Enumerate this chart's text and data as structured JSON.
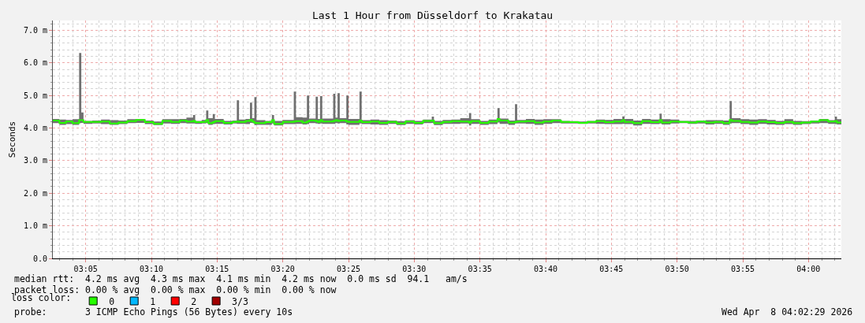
{
  "chart_data": {
    "type": "step",
    "title": "Last 1 Hour from Düsseldorf to Krakatau",
    "ylabel": "Seconds",
    "legend_title": "loss color:",
    "x": [
      "2026-04-08T03:02:30",
      "2026-04-08T03:03:00",
      "2026-04-08T03:03:30",
      "2026-04-08T03:04:00",
      "2026-04-08T03:04:30",
      "2026-04-08T03:04:40",
      "2026-04-08T03:04:50",
      "2026-04-08T03:05:30",
      "2026-04-08T03:06:10",
      "2026-04-08T03:06:50",
      "2026-04-08T03:07:30",
      "2026-04-08T03:08:10",
      "2026-04-08T03:08:50",
      "2026-04-08T03:09:30",
      "2026-04-08T03:10:10",
      "2026-04-08T03:10:50",
      "2026-04-08T03:11:30",
      "2026-04-08T03:12:10",
      "2026-04-08T03:12:40",
      "2026-04-08T03:13:10",
      "2026-04-08T03:13:20",
      "2026-04-08T03:13:50",
      "2026-04-08T03:14:10",
      "2026-04-08T03:14:20",
      "2026-04-08T03:14:40",
      "2026-04-08T03:14:50",
      "2026-04-08T03:15:30",
      "2026-04-08T03:16:10",
      "2026-04-08T03:16:30",
      "2026-04-08T03:16:40",
      "2026-04-08T03:17:10",
      "2026-04-08T03:17:30",
      "2026-04-08T03:17:40",
      "2026-04-08T03:17:50",
      "2026-04-08T03:18:00",
      "2026-04-08T03:18:40",
      "2026-04-08T03:19:10",
      "2026-04-08T03:19:20",
      "2026-04-08T03:20:00",
      "2026-04-08T03:20:50",
      "2026-04-08T03:21:00",
      "2026-04-08T03:21:30",
      "2026-04-08T03:21:50",
      "2026-04-08T03:22:00",
      "2026-04-08T03:22:30",
      "2026-04-08T03:22:40",
      "2026-04-08T03:22:50",
      "2026-04-08T03:23:00",
      "2026-04-08T03:23:50",
      "2026-04-08T03:24:00",
      "2026-04-08T03:24:10",
      "2026-04-08T03:24:20",
      "2026-04-08T03:24:50",
      "2026-04-08T03:25:00",
      "2026-04-08T03:25:50",
      "2026-04-08T03:26:00",
      "2026-04-08T03:26:40",
      "2026-04-08T03:27:20",
      "2026-04-08T03:28:00",
      "2026-04-08T03:28:40",
      "2026-04-08T03:29:20",
      "2026-04-08T03:30:00",
      "2026-04-08T03:30:40",
      "2026-04-08T03:31:20",
      "2026-04-08T03:31:30",
      "2026-04-08T03:32:10",
      "2026-04-08T03:32:50",
      "2026-04-08T03:33:30",
      "2026-04-08T03:34:10",
      "2026-04-08T03:34:20",
      "2026-04-08T03:35:00",
      "2026-04-08T03:35:40",
      "2026-04-08T03:36:20",
      "2026-04-08T03:36:30",
      "2026-04-08T03:37:10",
      "2026-04-08T03:37:40",
      "2026-04-08T03:37:50",
      "2026-04-08T03:38:30",
      "2026-04-08T03:39:10",
      "2026-04-08T03:39:50",
      "2026-04-08T03:40:30",
      "2026-04-08T03:41:10",
      "2026-04-08T03:41:50",
      "2026-04-08T03:42:30",
      "2026-04-08T03:43:10",
      "2026-04-08T03:43:50",
      "2026-04-08T03:44:30",
      "2026-04-08T03:45:10",
      "2026-04-08T03:45:50",
      "2026-04-08T03:46:00",
      "2026-04-08T03:46:40",
      "2026-04-08T03:47:20",
      "2026-04-08T03:48:00",
      "2026-04-08T03:48:40",
      "2026-04-08T03:48:50",
      "2026-04-08T03:49:30",
      "2026-04-08T03:50:10",
      "2026-04-08T03:50:50",
      "2026-04-08T03:51:30",
      "2026-04-08T03:52:10",
      "2026-04-08T03:52:50",
      "2026-04-08T03:53:30",
      "2026-04-08T03:54:00",
      "2026-04-08T03:54:10",
      "2026-04-08T03:54:50",
      "2026-04-08T03:55:30",
      "2026-04-08T03:56:10",
      "2026-04-08T03:56:50",
      "2026-04-08T03:57:30",
      "2026-04-08T03:58:10",
      "2026-04-08T03:58:50",
      "2026-04-08T03:59:30",
      "2026-04-08T04:00:10",
      "2026-04-08T04:00:50",
      "2026-04-08T04:01:30",
      "2026-04-08T04:02:00",
      "2026-04-08T04:02:10",
      "2026-04-08T04:02:30"
    ],
    "series": [
      {
        "name": "0",
        "color": "#26ff00",
        "values": [
          4.23,
          4.16,
          4.2,
          4.15,
          4.24,
          4.24,
          4.19,
          4.19,
          4.2,
          4.14,
          4.17,
          4.21,
          4.25,
          4.18,
          4.13,
          4.22,
          4.19,
          4.23,
          4.2,
          4.22,
          4.18,
          4.19,
          4.24,
          4.15,
          4.18,
          4.21,
          4.16,
          4.19,
          4.2,
          4.19,
          4.22,
          4.25,
          4.2,
          4.16,
          4.15,
          4.18,
          4.24,
          4.13,
          4.19,
          4.2,
          4.21,
          4.17,
          4.2,
          4.23,
          4.21,
          4.19,
          4.24,
          4.2,
          4.22,
          4.24,
          4.22,
          4.23,
          4.2,
          4.19,
          4.23,
          4.18,
          4.2,
          4.16,
          4.19,
          4.14,
          4.2,
          4.16,
          4.22,
          4.23,
          4.15,
          4.19,
          4.21,
          4.2,
          4.17,
          4.21,
          4.16,
          4.2,
          4.28,
          4.23,
          4.17,
          4.19,
          4.2,
          4.21,
          4.17,
          4.2,
          4.23,
          4.19,
          4.18,
          4.16,
          4.19,
          4.21,
          4.18,
          4.2,
          4.24,
          4.19,
          4.15,
          4.21,
          4.18,
          4.24,
          4.17,
          4.2,
          4.19,
          4.17,
          4.2,
          4.17,
          4.19,
          4.15,
          4.25,
          4.22,
          4.19,
          4.17,
          4.2,
          4.18,
          4.16,
          4.19,
          4.15,
          4.17,
          4.2,
          4.24,
          4.2,
          4.21,
          4.17,
          4.18
        ],
        "lower": [
          4.15,
          4.1,
          4.12,
          4.1,
          4.15,
          4.16,
          4.13,
          4.14,
          4.12,
          4.1,
          4.12,
          4.15,
          4.16,
          4.12,
          4.09,
          4.14,
          4.13,
          4.15,
          4.14,
          4.14,
          4.13,
          4.14,
          4.15,
          4.1,
          4.12,
          4.13,
          4.11,
          4.14,
          4.13,
          4.13,
          4.12,
          4.16,
          4.15,
          4.09,
          4.1,
          4.1,
          4.14,
          4.08,
          4.12,
          4.12,
          4.13,
          4.11,
          4.12,
          4.15,
          4.14,
          4.13,
          4.14,
          4.13,
          4.13,
          4.15,
          4.14,
          4.15,
          4.11,
          4.1,
          4.14,
          4.12,
          4.11,
          4.1,
          4.13,
          4.09,
          4.13,
          4.11,
          4.15,
          4.16,
          4.09,
          4.13,
          4.13,
          4.14,
          4.08,
          4.13,
          4.1,
          4.12,
          4.17,
          4.13,
          4.1,
          4.14,
          4.14,
          4.13,
          4.1,
          4.13,
          4.15,
          4.14,
          4.14,
          4.13,
          4.14,
          4.13,
          4.12,
          4.12,
          4.13,
          4.12,
          4.08,
          4.13,
          4.12,
          4.14,
          4.11,
          4.14,
          4.15,
          4.13,
          4.14,
          4.11,
          4.13,
          4.1,
          4.14,
          4.15,
          4.12,
          4.1,
          4.13,
          4.11,
          4.1,
          4.12,
          4.1,
          4.12,
          4.14,
          4.15,
          4.13,
          4.12,
          4.11,
          4.12
        ],
        "upper": [
          4.28,
          4.26,
          4.25,
          4.27,
          6.3,
          4.48,
          4.22,
          4.23,
          4.26,
          4.24,
          4.23,
          4.27,
          4.28,
          4.23,
          4.2,
          4.27,
          4.27,
          4.28,
          4.32,
          4.4,
          4.22,
          4.25,
          4.54,
          4.3,
          4.43,
          4.28,
          4.22,
          4.23,
          4.85,
          4.26,
          4.28,
          4.78,
          4.3,
          4.95,
          4.24,
          4.22,
          4.4,
          4.22,
          4.25,
          5.12,
          4.33,
          4.32,
          5.0,
          4.29,
          4.96,
          4.28,
          4.98,
          4.29,
          5.05,
          4.32,
          5.07,
          4.3,
          5.0,
          4.28,
          5.12,
          4.24,
          4.26,
          4.24,
          4.23,
          4.21,
          4.24,
          4.22,
          4.26,
          4.35,
          4.22,
          4.25,
          4.26,
          4.3,
          4.46,
          4.27,
          4.22,
          4.26,
          4.61,
          4.29,
          4.23,
          4.73,
          4.25,
          4.28,
          4.26,
          4.27,
          4.27,
          4.22,
          4.21,
          4.2,
          4.22,
          4.26,
          4.25,
          4.28,
          4.36,
          4.28,
          4.23,
          4.28,
          4.26,
          4.44,
          4.27,
          4.26,
          4.22,
          4.22,
          4.23,
          4.24,
          4.24,
          4.23,
          4.83,
          4.3,
          4.27,
          4.26,
          4.27,
          4.25,
          4.22,
          4.27,
          4.22,
          4.21,
          4.23,
          4.28,
          4.24,
          4.35,
          4.27,
          4.24
        ]
      },
      {
        "name": "1",
        "color": "#00b8ff",
        "values": [
          null,
          null,
          null,
          null,
          null,
          null,
          null,
          null,
          null,
          null,
          null,
          null,
          null,
          null,
          null,
          null,
          null,
          null,
          null,
          null,
          null,
          null,
          null,
          null,
          null,
          null,
          null,
          null,
          null,
          null,
          null,
          null,
          null,
          null,
          null,
          null,
          null,
          null,
          null,
          null,
          null,
          null,
          null,
          null,
          null,
          null,
          null,
          null,
          null,
          null,
          null,
          null,
          null,
          null,
          null,
          null,
          null,
          null,
          null,
          null,
          null,
          null,
          null,
          null,
          null,
          null,
          null,
          null,
          null,
          null,
          null,
          null,
          null,
          null,
          null,
          null,
          null,
          null,
          null,
          null,
          null,
          null,
          null,
          null,
          null,
          null,
          null,
          null,
          null,
          null,
          null,
          null,
          null,
          null,
          null,
          null,
          null,
          null,
          null,
          null,
          null,
          null,
          null,
          null,
          null,
          null,
          null,
          null,
          null,
          null,
          null,
          null,
          null,
          null,
          null,
          null,
          null,
          null
        ]
      },
      {
        "name": "2",
        "color": "#ff0000",
        "values": [
          null,
          null,
          null,
          null,
          null,
          null,
          null,
          null,
          null,
          null,
          null,
          null,
          null,
          null,
          null,
          null,
          null,
          null,
          null,
          null,
          null,
          null,
          null,
          null,
          null,
          null,
          null,
          null,
          null,
          null,
          null,
          null,
          null,
          null,
          null,
          null,
          null,
          null,
          null,
          null,
          null,
          null,
          null,
          null,
          null,
          null,
          null,
          null,
          null,
          null,
          null,
          null,
          null,
          null,
          null,
          null,
          null,
          null,
          null,
          null,
          null,
          null,
          null,
          null,
          null,
          null,
          null,
          null,
          null,
          null,
          null,
          null,
          null,
          null,
          null,
          null,
          null,
          null,
          null,
          null,
          null,
          null,
          null,
          null,
          null,
          null,
          null,
          null,
          null,
          null,
          null,
          null,
          null,
          null,
          null,
          null,
          null,
          null,
          null,
          null,
          null,
          null,
          null,
          null,
          null,
          null,
          null,
          null,
          null,
          null,
          null,
          null,
          null,
          null,
          null,
          null,
          null,
          null
        ]
      },
      {
        "name": "3/3",
        "color": "#a10000",
        "values": [
          null,
          null,
          null,
          null,
          null,
          null,
          null,
          null,
          null,
          null,
          null,
          null,
          null,
          null,
          null,
          null,
          null,
          null,
          null,
          null,
          null,
          null,
          null,
          null,
          null,
          null,
          null,
          null,
          null,
          null,
          null,
          null,
          null,
          null,
          null,
          null,
          null,
          null,
          null,
          null,
          null,
          null,
          null,
          null,
          null,
          null,
          null,
          null,
          null,
          null,
          null,
          null,
          null,
          null,
          null,
          null,
          null,
          null,
          null,
          null,
          null,
          null,
          null,
          null,
          null,
          null,
          null,
          null,
          null,
          null,
          null,
          null,
          null,
          null,
          null,
          null,
          null,
          null,
          null,
          null,
          null,
          null,
          null,
          null,
          null,
          null,
          null,
          null,
          null,
          null,
          null,
          null,
          null,
          null,
          null,
          null,
          null,
          null,
          null,
          null,
          null,
          null,
          null,
          null,
          null,
          null,
          null,
          null,
          null,
          null,
          null,
          null,
          null,
          null,
          null,
          null,
          null,
          null
        ]
      }
    ],
    "xlim": [
      "2026-04-08T03:02:30",
      "2026-04-08T04:02:30"
    ],
    "xticks": [
      {
        "value": "2026-04-08T03:03",
        "label": null
      },
      {
        "value": "2026-04-08T03:04",
        "label": null
      },
      {
        "value": "2026-04-08T03:05",
        "label": "03:05"
      },
      {
        "value": "2026-04-08T03:06",
        "label": null
      },
      {
        "value": "2026-04-08T03:07",
        "label": null
      },
      {
        "value": "2026-04-08T03:08",
        "label": null
      },
      {
        "value": "2026-04-08T03:09",
        "label": null
      },
      {
        "value": "2026-04-08T03:10",
        "label": "03:10"
      },
      {
        "value": "2026-04-08T03:11",
        "label": null
      },
      {
        "value": "2026-04-08T03:12",
        "label": null
      },
      {
        "value": "2026-04-08T03:13",
        "label": null
      },
      {
        "value": "2026-04-08T03:14",
        "label": null
      },
      {
        "value": "2026-04-08T03:15",
        "label": "03:15"
      },
      {
        "value": "2026-04-08T03:16",
        "label": null
      },
      {
        "value": "2026-04-08T03:17",
        "label": null
      },
      {
        "value": "2026-04-08T03:18",
        "label": null
      },
      {
        "value": "2026-04-08T03:19",
        "label": null
      },
      {
        "value": "2026-04-08T03:20",
        "label": "03:20"
      },
      {
        "value": "2026-04-08T03:21",
        "label": null
      },
      {
        "value": "2026-04-08T03:22",
        "label": null
      },
      {
        "value": "2026-04-08T03:23",
        "label": null
      },
      {
        "value": "2026-04-08T03:24",
        "label": null
      },
      {
        "value": "2026-04-08T03:25",
        "label": "03:25"
      },
      {
        "value": "2026-04-08T03:26",
        "label": null
      },
      {
        "value": "2026-04-08T03:27",
        "label": null
      },
      {
        "value": "2026-04-08T03:28",
        "label": null
      },
      {
        "value": "2026-04-08T03:29",
        "label": null
      },
      {
        "value": "2026-04-08T03:30",
        "label": "03:30"
      },
      {
        "value": "2026-04-08T03:31",
        "label": null
      },
      {
        "value": "2026-04-08T03:32",
        "label": null
      },
      {
        "value": "2026-04-08T03:33",
        "label": null
      },
      {
        "value": "2026-04-08T03:34",
        "label": null
      },
      {
        "value": "2026-04-08T03:35",
        "label": "03:35"
      },
      {
        "value": "2026-04-08T03:36",
        "label": null
      },
      {
        "value": "2026-04-08T03:37",
        "label": null
      },
      {
        "value": "2026-04-08T03:38",
        "label": null
      },
      {
        "value": "2026-04-08T03:39",
        "label": null
      },
      {
        "value": "2026-04-08T03:40",
        "label": "03:40"
      },
      {
        "value": "2026-04-08T03:41",
        "label": null
      },
      {
        "value": "2026-04-08T03:42",
        "label": null
      },
      {
        "value": "2026-04-08T03:43",
        "label": null
      },
      {
        "value": "2026-04-08T03:44",
        "label": null
      },
      {
        "value": "2026-04-08T03:45",
        "label": "03:45"
      },
      {
        "value": "2026-04-08T03:46",
        "label": null
      },
      {
        "value": "2026-04-08T03:47",
        "label": null
      },
      {
        "value": "2026-04-08T03:48",
        "label": null
      },
      {
        "value": "2026-04-08T03:49",
        "label": null
      },
      {
        "value": "2026-04-08T03:50",
        "label": "03:50"
      },
      {
        "value": "2026-04-08T03:51",
        "label": null
      },
      {
        "value": "2026-04-08T03:52",
        "label": null
      },
      {
        "value": "2026-04-08T03:53",
        "label": null
      },
      {
        "value": "2026-04-08T03:54",
        "label": null
      },
      {
        "value": "2026-04-08T03:55",
        "label": "03:55"
      },
      {
        "value": "2026-04-08T03:56",
        "label": null
      },
      {
        "value": "2026-04-08T03:57",
        "label": null
      },
      {
        "value": "2026-04-08T03:58",
        "label": null
      },
      {
        "value": "2026-04-08T03:59",
        "label": null
      },
      {
        "value": "2026-04-08T04:00",
        "label": "04:00"
      },
      {
        "value": "2026-04-08T04:01",
        "label": null
      },
      {
        "value": "2026-04-08T04:02",
        "label": null
      }
    ],
    "ylim": [
      0,
      7.3
    ],
    "yticks": [
      {
        "value": 0,
        "label": "0.0"
      },
      {
        "value": 0.2,
        "label": null
      },
      {
        "value": 0.4,
        "label": null
      },
      {
        "value": 0.6,
        "label": null
      },
      {
        "value": 0.8,
        "label": null
      },
      {
        "value": 1,
        "label": "1.0 m"
      },
      {
        "value": 1.2,
        "label": null
      },
      {
        "value": 1.4,
        "label": null
      },
      {
        "value": 1.6,
        "label": null
      },
      {
        "value": 1.8,
        "label": null
      },
      {
        "value": 2,
        "label": "2.0 m"
      },
      {
        "value": 2.2,
        "label": null
      },
      {
        "value": 2.4,
        "label": null
      },
      {
        "value": 2.6,
        "label": null
      },
      {
        "value": 2.8,
        "label": null
      },
      {
        "value": 3,
        "label": "3.0 m"
      },
      {
        "value": 3.2,
        "label": null
      },
      {
        "value": 3.4,
        "label": null
      },
      {
        "value": 3.6,
        "label": null
      },
      {
        "value": 3.8,
        "label": null
      },
      {
        "value": 4,
        "label": "4.0 m"
      },
      {
        "value": 4.2,
        "label": null
      },
      {
        "value": 4.4,
        "label": null
      },
      {
        "value": 4.6,
        "label": null
      },
      {
        "value": 4.8,
        "label": null
      },
      {
        "value": 5,
        "label": "5.0 m"
      },
      {
        "value": 5.2,
        "label": null
      },
      {
        "value": 5.4,
        "label": null
      },
      {
        "value": 5.6,
        "label": null
      },
      {
        "value": 5.8,
        "label": null
      },
      {
        "value": 6,
        "label": "6.0 m"
      },
      {
        "value": 6.2,
        "label": null
      },
      {
        "value": 6.4,
        "label": null
      },
      {
        "value": 6.6,
        "label": null
      },
      {
        "value": 6.8,
        "label": null
      },
      {
        "value": 7,
        "label": "7.0 m"
      },
      {
        "value": 7.2,
        "label": null
      }
    ],
    "grid": true,
    "legend": "bottom left",
    "annotations": [
      "median rtt:  4.2 ms avg  4.3 ms max  4.1 ms min  4.2 ms now  0.0 ms sd  94.1   am/s",
      "packet loss: 0.00 % avg  0.00 % max  0.00 % min  0.00 % now",
      "probe:       3 ICMP Echo Pings (56 Bytes) every 10s",
      "Wed Apr  8 04:02:29 2026"
    ]
  }
}
